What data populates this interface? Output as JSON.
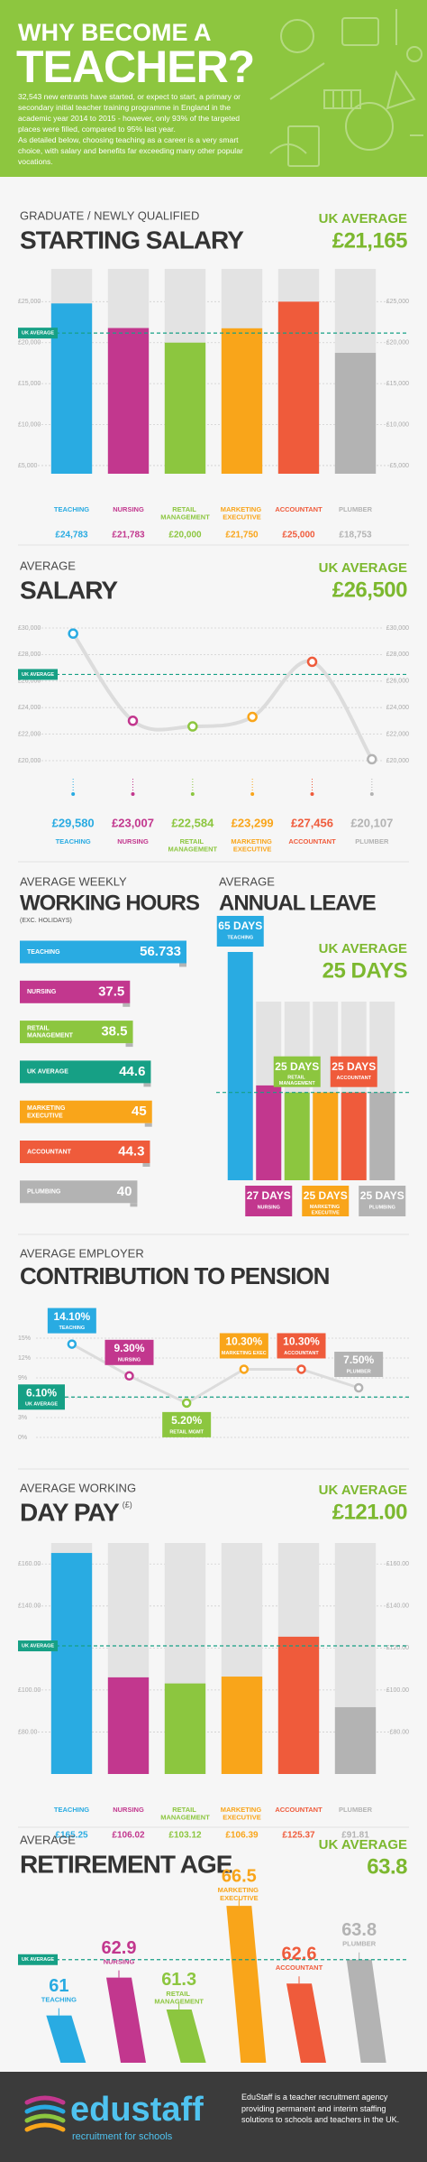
{
  "header": {
    "title_line1": "WHY BECOME A",
    "title_line2": "TEACHER?",
    "paragraphs": [
      "32,543 new entrants have started, or expect to start, a primary or secondary initial teacher training programme in England in the academic year 2014 to 2015 - however, only 93% of the targeted places were filled, compared to 95% last year.",
      "As detailed below, choosing teaching as a career is a very smart choice, with salary and benefits far exceeding many other popular vocations."
    ]
  },
  "chart_data": [
    {
      "type": "bar",
      "subtitle": "GRADUATE / NEWLY QUALIFIED",
      "title": "STARTING SALARY",
      "average_label": "UK AVERAGE",
      "average": {
        "value": 21165,
        "label": "£21,165"
      },
      "average_tag": "UK AVERAGE",
      "categories": [
        "TEACHING",
        "NURSING",
        "RETAIL MANAGEMENT",
        "MARKETING EXECUTIVE",
        "ACCOUNTANT",
        "PLUMBER"
      ],
      "values": [
        24783,
        21783,
        20000,
        21750,
        25000,
        18753
      ],
      "value_labels": [
        "£24,783",
        "£21,783",
        "£20,000",
        "£21,750",
        "£25,000",
        "£18,753"
      ],
      "colors": [
        "#29abe2",
        "#c2378e",
        "#8cc63f",
        "#f9a51a",
        "#ef5b3b",
        "#b3b3b3"
      ],
      "ylim": [
        4000,
        29000
      ],
      "yticks": [
        {
          "value": 5000,
          "label": "£5,000"
        },
        {
          "value": 10000,
          "label": "£10,000"
        },
        {
          "value": 15000,
          "label": "£15,000"
        },
        {
          "value": 20000,
          "label": "£20,000"
        },
        {
          "value": 25000,
          "label": "£25,000"
        }
      ],
      "grid": true
    },
    {
      "type": "line",
      "subtitle": "AVERAGE",
      "title": "SALARY",
      "average_label": "UK AVERAGE",
      "average": {
        "value": 26500,
        "label": "£26,500"
      },
      "average_tag": "UK AVERAGE",
      "categories": [
        "TEACHING",
        "NURSING",
        "RETAIL MANAGEMENT",
        "MARKETING EXECUTIVE",
        "ACCOUNTANT",
        "PLUMBER"
      ],
      "values": [
        29580,
        23007,
        22584,
        23299,
        27456,
        20107
      ],
      "value_labels": [
        "£29,580",
        "£23,007",
        "£22,584",
        "£23,299",
        "£27,456",
        "£20,107"
      ],
      "colors": [
        "#29abe2",
        "#c2378e",
        "#8cc63f",
        "#f9a51a",
        "#ef5b3b",
        "#b3b3b3"
      ],
      "ylim": [
        20000,
        30000
      ],
      "yticks": [
        {
          "value": 20000,
          "label": "£20,000"
        },
        {
          "value": 22000,
          "label": "£22,000"
        },
        {
          "value": 24000,
          "label": "£24,000"
        },
        {
          "value": 26000,
          "label": "£26,000"
        },
        {
          "value": 28000,
          "label": "£28,000"
        },
        {
          "value": 30000,
          "label": "£30,000"
        }
      ],
      "grid": true
    },
    {
      "type": "hbar",
      "subtitle": "AVERAGE WEEKLY",
      "title": "WORKING HOURS",
      "note": "(EXC. HOLIDAYS)",
      "categories": [
        "TEACHING",
        "NURSING",
        "RETAIL MANAGEMENT",
        "UK AVERAGE",
        "MARKETING EXECUTIVE",
        "ACCOUNTANT",
        "PLUMBING"
      ],
      "values": [
        56.733,
        37.5,
        38.5,
        44.6,
        45,
        44.3,
        40
      ],
      "colors": [
        "#29abe2",
        "#c2378e",
        "#8cc63f",
        "#16a085",
        "#f9a51a",
        "#ef5b3b",
        "#b3b3b3"
      ]
    },
    {
      "type": "leave",
      "subtitle": "AVERAGE",
      "title": "ANNUAL LEAVE",
      "average_label": "UK AVERAGE",
      "average": {
        "value": 25,
        "label": "25 DAYS"
      },
      "categories": [
        "TEACHING",
        "NURSING",
        "RETAIL MANAGEMENT",
        "MARKETING EXECUTIVE",
        "ACCOUNTANT",
        "PLUMBING"
      ],
      "values": [
        65,
        27,
        25,
        25,
        25,
        25
      ],
      "value_labels": [
        "65 DAYS",
        "27 DAYS",
        "25 DAYS",
        "25 DAYS",
        "25 DAYS",
        "25 DAYS"
      ],
      "colors": [
        "#29abe2",
        "#c2378e",
        "#8cc63f",
        "#f9a51a",
        "#ef5b3b",
        "#b3b3b3"
      ]
    },
    {
      "type": "pension",
      "subtitle": "AVERAGE EMPLOYER",
      "title": "CONTRIBUTION TO PENSION",
      "average": {
        "value": 6.1,
        "label": "6.10%"
      },
      "average_tag": "UK AVERAGE",
      "categories": [
        "TEACHING",
        "NURSING",
        "RETAIL MGMT",
        "MARKETING EXEC",
        "ACCOUNTANT",
        "PLUMBER"
      ],
      "values": [
        14.1,
        9.3,
        5.2,
        10.3,
        10.3,
        7.5
      ],
      "value_labels": [
        "14.10%",
        "9.30%",
        "5.20%",
        "10.30%",
        "10.30%",
        "7.50%"
      ],
      "colors": [
        "#29abe2",
        "#c2378e",
        "#8cc63f",
        "#f9a51a",
        "#ef5b3b",
        "#b3b3b3"
      ],
      "ylim": [
        0,
        15
      ],
      "yticks": [
        {
          "value": 0,
          "label": "0%"
        },
        {
          "value": 3,
          "label": "3%"
        },
        {
          "value": 6,
          "label": "6%"
        },
        {
          "value": 9,
          "label": "9%"
        },
        {
          "value": 12,
          "label": "12%"
        },
        {
          "value": 15,
          "label": "15%"
        }
      ],
      "grid": true
    },
    {
      "type": "bar",
      "subtitle": "AVERAGE WORKING",
      "title": "DAY PAY",
      "title_note": "(£)",
      "average_label": "UK AVERAGE",
      "average": {
        "value": 121,
        "label": "£121.00"
      },
      "average_tag": "UK AVERAGE",
      "categories": [
        "TEACHING",
        "NURSING",
        "RETAIL MANAGEMENT",
        "MARKETING EXECUTIVE",
        "ACCOUNTANT",
        "PLUMBER"
      ],
      "values": [
        165.25,
        106.02,
        103.12,
        106.39,
        125.37,
        91.81
      ],
      "value_labels": [
        "£165.25",
        "£106.02",
        "£103.12",
        "£106.39",
        "£125.37",
        "£91.81"
      ],
      "colors": [
        "#29abe2",
        "#c2378e",
        "#8cc63f",
        "#f9a51a",
        "#ef5b3b",
        "#b3b3b3"
      ],
      "ylim": [
        60,
        170
      ],
      "yticks": [
        {
          "value": 80,
          "label": "£80.00"
        },
        {
          "value": 100,
          "label": "£100.00"
        },
        {
          "value": 120,
          "label": "£120.00"
        },
        {
          "value": 140,
          "label": "£140.00"
        },
        {
          "value": 160,
          "label": "£160.00"
        }
      ],
      "grid": true
    },
    {
      "type": "ribbon",
      "subtitle": "AVERAGE",
      "title": "RETIREMENT AGE",
      "average_label": "UK AVERAGE",
      "average": 63.8,
      "average_tag": "UK AVERAGE",
      "categories": [
        "TEACHING",
        "NURSING",
        "RETAIL MANAGEMENT",
        "MARKETING EXECUTIVE",
        "ACCOUNTANT",
        "PLUMBER"
      ],
      "values": [
        61,
        62.9,
        61.3,
        66.5,
        62.6,
        63.8
      ],
      "colors": [
        "#29abe2",
        "#c2378e",
        "#8cc63f",
        "#f9a51a",
        "#ef5b3b",
        "#b3b3b3"
      ]
    }
  ],
  "footer": {
    "brand": "edustaff",
    "tagline": "recruitment for schools",
    "text": "EduStaff is a teacher recruitment agency providing permanent and interim staffing solutions to schools and teachers in the UK."
  }
}
